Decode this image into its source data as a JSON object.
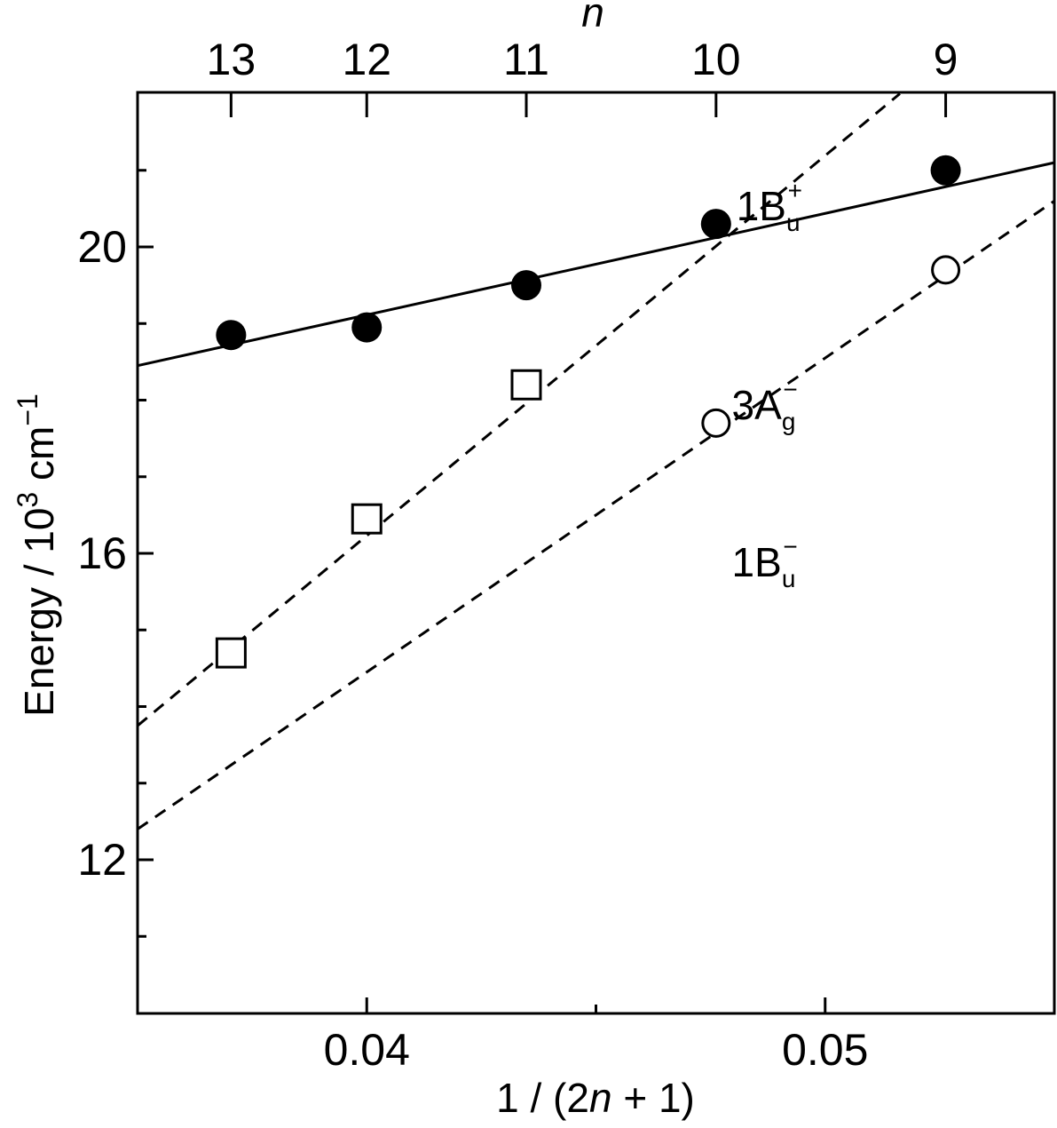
{
  "chart_data": {
    "type": "scatter",
    "xlabel": {
      "pre": "1 / (2",
      "italic": "n",
      "post": " + 1)"
    },
    "ylabel": {
      "pre": "Energy / 10",
      "sup": "3",
      "mid": " cm",
      "sup2": "−1"
    },
    "top_axis_label": "n",
    "xlim": [
      0.035,
      0.055
    ],
    "ylim": [
      10,
      20
    ],
    "x_ticks": [
      0.04,
      0.05
    ],
    "x_tick_labels": [
      "0.04",
      "0.05"
    ],
    "x_minor_ticks": [
      0.045
    ],
    "y_ticks": [
      12,
      16,
      20
    ],
    "y_tick_labels": [
      "12",
      "16",
      "20"
    ],
    "y_minor_ticks": [
      11,
      13,
      14,
      15,
      17,
      18,
      19,
      21
    ],
    "top_ticks": [
      {
        "n": "13",
        "x": 0.03704
      },
      {
        "n": "12",
        "x": 0.04
      },
      {
        "n": "11",
        "x": 0.04348
      },
      {
        "n": "10",
        "x": 0.04762
      },
      {
        "n": "9",
        "x": 0.05263
      }
    ],
    "series": [
      {
        "name": {
          "base": "1B",
          "sub": "u",
          "sup": "+"
        },
        "marker": "filled-circle",
        "points": [
          [
            0.03704,
            18.85
          ],
          [
            0.04,
            18.95
          ],
          [
            0.04348,
            19.5
          ],
          [
            0.04762,
            20.3
          ],
          [
            0.05263,
            21.0
          ]
        ],
        "fit": {
          "style": "solid",
          "x": [
            0.035,
            0.055
          ],
          "y": [
            18.45,
            21.1
          ]
        },
        "label_at": [
          0.0495,
          20.35
        ]
      },
      {
        "name": {
          "base": "3A",
          "sub": "g",
          "sup": "−"
        },
        "marker": "open-square",
        "points": [
          [
            0.03704,
            14.7
          ],
          [
            0.04,
            16.45
          ],
          [
            0.04348,
            18.2
          ]
        ],
        "fit": {
          "style": "dashed",
          "x": [
            0.035,
            0.05163
          ],
          "y": [
            13.75,
            22.0
          ]
        },
        "label_at": [
          0.0494,
          17.75
        ]
      },
      {
        "name": {
          "base": "1B",
          "sub": "u",
          "sup": "−"
        },
        "marker": "open-circle",
        "points": [
          [
            0.04762,
            17.7
          ],
          [
            0.05263,
            19.7
          ]
        ],
        "fit": {
          "style": "dashed",
          "x": [
            0.035,
            0.055
          ],
          "y": [
            12.4,
            20.6
          ]
        },
        "label_at": [
          0.0494,
          15.7
        ]
      }
    ],
    "grid": false,
    "legend": "none"
  }
}
